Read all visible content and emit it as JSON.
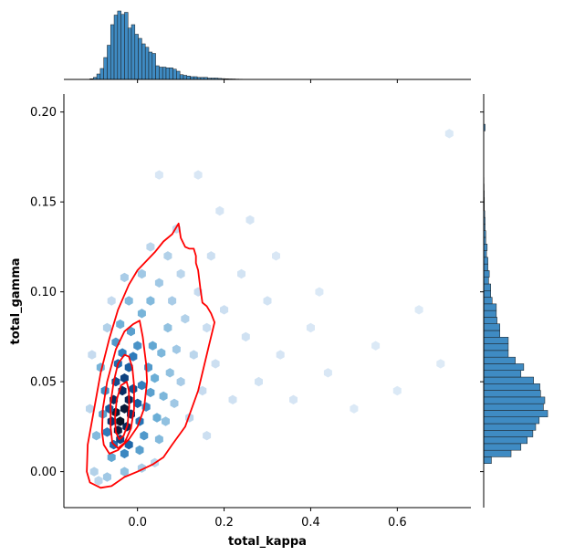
{
  "chart_data": {
    "type": "scatter",
    "subtype": "jointplot-hexbin-kde",
    "xlabel": "total_kappa",
    "ylabel": "total_gamma",
    "xlim": [
      -0.17,
      0.77
    ],
    "ylim": [
      -0.02,
      0.21
    ],
    "xticks": [
      0.0,
      0.2,
      0.4,
      0.6
    ],
    "yticks": [
      0.0,
      0.05,
      0.1,
      0.15,
      0.2
    ],
    "xtick_labels": [
      "0.0",
      "0.2",
      "0.4",
      "0.6"
    ],
    "ytick_labels": [
      "0.00",
      "0.05",
      "0.10",
      "0.15",
      "0.20"
    ],
    "grid": false,
    "colors": {
      "hexbin": "#1f77b4",
      "kde": "#ff0000",
      "hist": "#3f8bc3"
    },
    "hexbin": {
      "gridsize_x": 48,
      "points": [
        [
          -0.04,
          0.028,
          1.0
        ],
        [
          -0.05,
          0.033,
          0.92
        ],
        [
          -0.03,
          0.035,
          0.9
        ],
        [
          -0.045,
          0.023,
          0.85
        ],
        [
          -0.02,
          0.04,
          0.75
        ],
        [
          -0.055,
          0.04,
          0.7
        ],
        [
          -0.035,
          0.045,
          0.68
        ],
        [
          -0.025,
          0.025,
          0.72
        ],
        [
          -0.06,
          0.028,
          0.62
        ],
        [
          -0.015,
          0.032,
          0.62
        ],
        [
          -0.04,
          0.018,
          0.55
        ],
        [
          -0.03,
          0.052,
          0.55
        ],
        [
          -0.05,
          0.05,
          0.5
        ],
        [
          -0.01,
          0.046,
          0.5
        ],
        [
          -0.065,
          0.035,
          0.45
        ],
        [
          0.0,
          0.038,
          0.42
        ],
        [
          -0.02,
          0.058,
          0.42
        ],
        [
          -0.055,
          0.015,
          0.38
        ],
        [
          -0.02,
          0.015,
          0.4
        ],
        [
          -0.045,
          0.06,
          0.38
        ],
        [
          -0.07,
          0.022,
          0.32
        ],
        [
          0.005,
          0.028,
          0.35
        ],
        [
          -0.01,
          0.064,
          0.32
        ],
        [
          -0.035,
          0.066,
          0.3
        ],
        [
          0.01,
          0.048,
          0.3
        ],
        [
          -0.075,
          0.045,
          0.26
        ],
        [
          0.02,
          0.036,
          0.26
        ],
        [
          -0.03,
          0.01,
          0.28
        ],
        [
          0.0,
          0.07,
          0.24
        ],
        [
          -0.05,
          0.072,
          0.22
        ],
        [
          0.025,
          0.058,
          0.22
        ],
        [
          -0.08,
          0.032,
          0.2
        ],
        [
          0.015,
          0.02,
          0.22
        ],
        [
          0.03,
          0.044,
          0.2
        ],
        [
          -0.015,
          0.078,
          0.2
        ],
        [
          0.035,
          0.07,
          0.18
        ],
        [
          -0.06,
          0.008,
          0.18
        ],
        [
          0.005,
          0.012,
          0.2
        ],
        [
          0.045,
          0.03,
          0.16
        ],
        [
          0.04,
          0.052,
          0.16
        ],
        [
          -0.085,
          0.058,
          0.14
        ],
        [
          -0.04,
          0.082,
          0.15
        ],
        [
          0.01,
          0.088,
          0.14
        ],
        [
          0.055,
          0.066,
          0.13
        ],
        [
          0.05,
          0.018,
          0.12
        ],
        [
          0.06,
          0.042,
          0.13
        ],
        [
          -0.095,
          0.02,
          0.12
        ],
        [
          0.03,
          0.095,
          0.12
        ],
        [
          -0.02,
          0.095,
          0.12
        ],
        [
          0.07,
          0.08,
          0.1
        ],
        [
          0.075,
          0.055,
          0.1
        ],
        [
          0.065,
          0.028,
          0.1
        ],
        [
          0.085,
          0.038,
          0.08
        ],
        [
          0.09,
          0.068,
          0.08
        ],
        [
          0.05,
          0.105,
          0.08
        ],
        [
          0.01,
          0.11,
          0.08
        ],
        [
          -0.03,
          0.108,
          0.07
        ],
        [
          0.08,
          0.095,
          0.07
        ],
        [
          0.1,
          0.05,
          0.07
        ],
        [
          0.11,
          0.085,
          0.06
        ],
        [
          0.07,
          0.12,
          0.06
        ],
        [
          0.03,
          0.125,
          0.05
        ],
        [
          0.12,
          0.03,
          0.05
        ],
        [
          0.13,
          0.065,
          0.05
        ],
        [
          0.1,
          0.11,
          0.05
        ],
        [
          0.14,
          0.1,
          0.04
        ],
        [
          0.15,
          0.045,
          0.04
        ],
        [
          0.09,
          0.135,
          0.04
        ],
        [
          0.16,
          0.08,
          0.035
        ],
        [
          0.18,
          0.06,
          0.03
        ],
        [
          0.2,
          0.09,
          0.03
        ],
        [
          0.17,
          0.12,
          0.03
        ],
        [
          0.22,
          0.04,
          0.025
        ],
        [
          0.25,
          0.075,
          0.025
        ],
        [
          0.24,
          0.11,
          0.02
        ],
        [
          0.28,
          0.05,
          0.02
        ],
        [
          0.3,
          0.095,
          0.02
        ],
        [
          0.33,
          0.065,
          0.015
        ],
        [
          0.26,
          0.14,
          0.015
        ],
        [
          0.36,
          0.04,
          0.015
        ],
        [
          0.4,
          0.08,
          0.012
        ],
        [
          0.44,
          0.055,
          0.012
        ],
        [
          0.5,
          0.035,
          0.01
        ],
        [
          0.55,
          0.07,
          0.01
        ],
        [
          0.6,
          0.045,
          0.01
        ],
        [
          0.65,
          0.09,
          0.008
        ],
        [
          0.7,
          0.06,
          0.008
        ],
        [
          0.72,
          0.188,
          0.01
        ],
        [
          0.14,
          0.165,
          0.012
        ],
        [
          0.05,
          0.165,
          0.012
        ],
        [
          -0.1,
          0.0,
          0.06
        ],
        [
          -0.09,
          -0.005,
          0.05
        ],
        [
          -0.07,
          -0.003,
          0.08
        ],
        [
          -0.03,
          0.0,
          0.1
        ],
        [
          0.01,
          0.002,
          0.07
        ],
        [
          0.04,
          0.005,
          0.05
        ],
        [
          -0.11,
          0.035,
          0.05
        ],
        [
          -0.105,
          0.065,
          0.04
        ],
        [
          -0.07,
          0.08,
          0.06
        ],
        [
          -0.06,
          0.095,
          0.04
        ],
        [
          0.16,
          0.02,
          0.03
        ],
        [
          0.19,
          0.145,
          0.015
        ],
        [
          0.32,
          0.12,
          0.012
        ],
        [
          0.42,
          0.1,
          0.01
        ]
      ]
    },
    "kde_levels": [
      {
        "level": "outer",
        "path": [
          [
            0.095,
            0.138
          ],
          [
            0.08,
            0.132
          ],
          [
            0.06,
            0.128
          ],
          [
            0.04,
            0.122
          ],
          [
            0.0,
            0.112
          ],
          [
            -0.02,
            0.104
          ],
          [
            -0.045,
            0.09
          ],
          [
            -0.065,
            0.074
          ],
          [
            -0.085,
            0.055
          ],
          [
            -0.1,
            0.035
          ],
          [
            -0.115,
            0.015
          ],
          [
            -0.117,
            0.0
          ],
          [
            -0.11,
            -0.006
          ],
          [
            -0.085,
            -0.009
          ],
          [
            -0.06,
            -0.008
          ],
          [
            -0.03,
            -0.003
          ],
          [
            0.0,
            0.0
          ],
          [
            0.035,
            0.004
          ],
          [
            0.06,
            0.008
          ],
          [
            0.08,
            0.015
          ],
          [
            0.11,
            0.025
          ],
          [
            0.14,
            0.045
          ],
          [
            0.165,
            0.07
          ],
          [
            0.178,
            0.083
          ],
          [
            0.17,
            0.088
          ],
          [
            0.16,
            0.092
          ],
          [
            0.15,
            0.094
          ],
          [
            0.145,
            0.102
          ],
          [
            0.14,
            0.112
          ],
          [
            0.135,
            0.116
          ],
          [
            0.135,
            0.12
          ],
          [
            0.13,
            0.124
          ],
          [
            0.12,
            0.124
          ],
          [
            0.11,
            0.125
          ],
          [
            0.1,
            0.13
          ],
          [
            0.095,
            0.138
          ]
        ]
      },
      {
        "level": "mid",
        "path": [
          [
            0.005,
            0.084
          ],
          [
            -0.01,
            0.082
          ],
          [
            -0.03,
            0.078
          ],
          [
            -0.05,
            0.068
          ],
          [
            -0.07,
            0.05
          ],
          [
            -0.08,
            0.035
          ],
          [
            -0.082,
            0.022
          ],
          [
            -0.078,
            0.015
          ],
          [
            -0.065,
            0.01
          ],
          [
            -0.045,
            0.012
          ],
          [
            -0.02,
            0.018
          ],
          [
            0.0,
            0.025
          ],
          [
            0.015,
            0.035
          ],
          [
            0.022,
            0.05
          ],
          [
            0.02,
            0.06
          ],
          [
            0.012,
            0.075
          ],
          [
            0.005,
            0.084
          ]
        ]
      },
      {
        "level": "inner",
        "path": [
          [
            -0.03,
            0.065
          ],
          [
            -0.045,
            0.06
          ],
          [
            -0.055,
            0.05
          ],
          [
            -0.062,
            0.038
          ],
          [
            -0.062,
            0.025
          ],
          [
            -0.058,
            0.016
          ],
          [
            -0.045,
            0.013
          ],
          [
            -0.03,
            0.016
          ],
          [
            -0.015,
            0.024
          ],
          [
            -0.008,
            0.035
          ],
          [
            -0.008,
            0.048
          ],
          [
            -0.012,
            0.058
          ],
          [
            -0.02,
            0.064
          ],
          [
            -0.03,
            0.065
          ]
        ]
      },
      {
        "level": "core",
        "path": [
          [
            -0.025,
            0.05
          ],
          [
            -0.038,
            0.048
          ],
          [
            -0.048,
            0.04
          ],
          [
            -0.052,
            0.03
          ],
          [
            -0.05,
            0.022
          ],
          [
            -0.042,
            0.018
          ],
          [
            -0.032,
            0.02
          ],
          [
            -0.023,
            0.026
          ],
          [
            -0.019,
            0.036
          ],
          [
            -0.02,
            0.045
          ],
          [
            -0.025,
            0.05
          ]
        ]
      }
    ],
    "marginal_x": {
      "bin_width": 0.008,
      "bins": [
        [
          -0.11,
          0.01
        ],
        [
          -0.102,
          0.03
        ],
        [
          -0.094,
          0.08
        ],
        [
          -0.086,
          0.16
        ],
        [
          -0.078,
          0.32
        ],
        [
          -0.07,
          0.5
        ],
        [
          -0.062,
          0.8
        ],
        [
          -0.054,
          0.94
        ],
        [
          -0.046,
          1.0
        ],
        [
          -0.038,
          0.95
        ],
        [
          -0.03,
          0.98
        ],
        [
          -0.022,
          0.75
        ],
        [
          -0.014,
          0.8
        ],
        [
          -0.006,
          0.66
        ],
        [
          0.002,
          0.6
        ],
        [
          0.01,
          0.52
        ],
        [
          0.018,
          0.47
        ],
        [
          0.026,
          0.4
        ],
        [
          0.034,
          0.38
        ],
        [
          0.042,
          0.2
        ],
        [
          0.05,
          0.18
        ],
        [
          0.058,
          0.18
        ],
        [
          0.066,
          0.17
        ],
        [
          0.074,
          0.17
        ],
        [
          0.082,
          0.15
        ],
        [
          0.09,
          0.12
        ],
        [
          0.098,
          0.07
        ],
        [
          0.106,
          0.06
        ],
        [
          0.114,
          0.05
        ],
        [
          0.122,
          0.04
        ],
        [
          0.13,
          0.04
        ],
        [
          0.138,
          0.03
        ],
        [
          0.146,
          0.03
        ],
        [
          0.154,
          0.03
        ],
        [
          0.162,
          0.02
        ],
        [
          0.17,
          0.02
        ],
        [
          0.178,
          0.02
        ],
        [
          0.186,
          0.015
        ],
        [
          0.194,
          0.012
        ],
        [
          0.202,
          0.01
        ],
        [
          0.21,
          0.008
        ],
        [
          0.218,
          0.007
        ],
        [
          0.226,
          0.005
        ],
        [
          0.234,
          0.004
        ]
      ]
    },
    "marginal_y": {
      "bin_width": 0.0037,
      "bins": [
        [
          0.0045,
          0.11
        ],
        [
          0.0082,
          0.39
        ],
        [
          0.0119,
          0.53
        ],
        [
          0.0156,
          0.62
        ],
        [
          0.0193,
          0.7
        ],
        [
          0.023,
          0.74
        ],
        [
          0.0267,
          0.79
        ],
        [
          0.0304,
          0.91
        ],
        [
          0.0341,
          0.85
        ],
        [
          0.0378,
          0.87
        ],
        [
          0.0415,
          0.81
        ],
        [
          0.0452,
          0.8
        ],
        [
          0.0489,
          0.71
        ],
        [
          0.0526,
          0.53
        ],
        [
          0.0563,
          0.57
        ],
        [
          0.06,
          0.45
        ],
        [
          0.0637,
          0.35
        ],
        [
          0.0674,
          0.35
        ],
        [
          0.0711,
          0.35
        ],
        [
          0.0748,
          0.23
        ],
        [
          0.0785,
          0.23
        ],
        [
          0.0822,
          0.19
        ],
        [
          0.0859,
          0.18
        ],
        [
          0.0896,
          0.18
        ],
        [
          0.0933,
          0.12
        ],
        [
          0.097,
          0.1
        ],
        [
          0.1007,
          0.1
        ],
        [
          0.1044,
          0.07
        ],
        [
          0.1081,
          0.08
        ],
        [
          0.1118,
          0.06
        ],
        [
          0.1155,
          0.06
        ],
        [
          0.1192,
          0.04
        ],
        [
          0.1229,
          0.05
        ],
        [
          0.1266,
          0.03
        ],
        [
          0.1303,
          0.03
        ],
        [
          0.134,
          0.02
        ],
        [
          0.1377,
          0.02
        ],
        [
          0.1414,
          0.015
        ],
        [
          0.1451,
          0.01
        ],
        [
          0.1488,
          0.01
        ],
        [
          0.1525,
          0.008
        ],
        [
          0.1562,
          0.006
        ],
        [
          0.1599,
          0.004
        ],
        [
          0.1636,
          0.003
        ],
        [
          0.1673,
          0.002
        ],
        [
          0.171,
          0.002
        ],
        [
          0.1747,
          0.002
        ],
        [
          0.1784,
          0.002
        ],
        [
          0.1821,
          0.002
        ],
        [
          0.1858,
          0.002
        ],
        [
          0.1895,
          0.02
        ]
      ]
    }
  }
}
